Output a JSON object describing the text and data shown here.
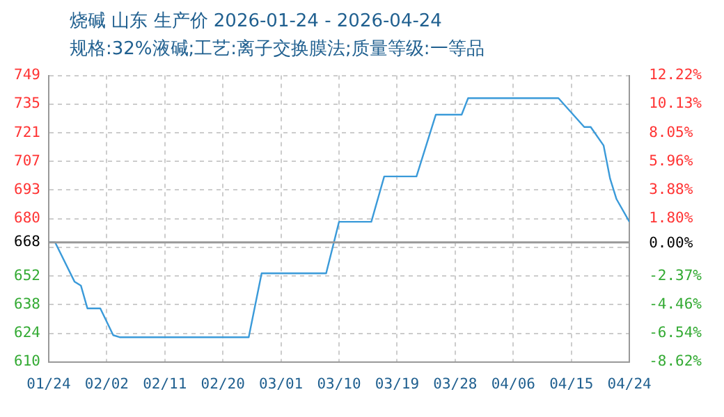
{
  "chart_data": {
    "type": "line",
    "title": "烧碱 山东 生产价 2026-01-24 - 2026-04-24",
    "subtitle": "规格:32%液碱;工艺:离子交换膜法;质量等级:一等品",
    "x": [
      "2026-01-24",
      "2026-01-25",
      "2026-01-28",
      "2026-01-29",
      "2026-01-30",
      "2026-02-01",
      "2026-02-03",
      "2026-02-04",
      "2026-02-24",
      "2026-02-26",
      "2026-03-08",
      "2026-03-10",
      "2026-03-15",
      "2026-03-17",
      "2026-03-22",
      "2026-03-25",
      "2026-03-29",
      "2026-03-30",
      "2026-04-13",
      "2026-04-17",
      "2026-04-18",
      "2026-04-20",
      "2026-04-21",
      "2026-04-22",
      "2026-04-24"
    ],
    "series": [
      {
        "color": "#3a9ad9",
        "values": [
          668,
          668,
          649,
          647,
          636,
          636,
          623,
          622,
          622,
          653,
          653,
          678,
          678,
          700,
          700,
          730,
          730,
          738,
          738,
          724,
          724,
          715,
          699,
          689,
          678
        ]
      }
    ],
    "xlim": [
      "2026-01-24",
      "2026-04-24"
    ],
    "xticks": [
      {
        "value": "2026-01-24",
        "label": "01/24"
      },
      {
        "value": "2026-02-02",
        "label": "02/02"
      },
      {
        "value": "2026-02-11",
        "label": "02/11"
      },
      {
        "value": "2026-02-20",
        "label": "02/20"
      },
      {
        "value": "2026-03-01",
        "label": "03/01"
      },
      {
        "value": "2026-03-10",
        "label": "03/10"
      },
      {
        "value": "2026-03-19",
        "label": "03/19"
      },
      {
        "value": "2026-03-28",
        "label": "03/28"
      },
      {
        "value": "2026-04-06",
        "label": "04/06"
      },
      {
        "value": "2026-04-15",
        "label": "04/15"
      },
      {
        "value": "2026-04-24",
        "label": "04/24"
      }
    ],
    "ylim": [
      610,
      749
    ],
    "yticks": [
      610,
      {
        "value": 623.9,
        "label": "624"
      },
      {
        "value": 637.8,
        "label": "638"
      },
      {
        "value": 651.7,
        "label": "652"
      },
      {
        "value": 665.6,
        "label": null
      },
      668,
      {
        "value": 679.5,
        "label": "680"
      },
      {
        "value": 693.4,
        "label": "693"
      },
      {
        "value": 707.3,
        "label": "707"
      },
      {
        "value": 721.2,
        "label": "721"
      },
      {
        "value": 735.1,
        "label": "735"
      },
      749
    ],
    "y2lim": [
      -8.62,
      12.22
    ],
    "y2ticks": [
      {
        "value": -8.62,
        "label": "-8.62%"
      },
      {
        "value": -6.54,
        "label": "-6.54%"
      },
      {
        "value": -4.46,
        "label": "-4.46%"
      },
      {
        "value": -2.37,
        "label": "-2.37%"
      },
      {
        "value": 0,
        "label": "0.00%"
      },
      {
        "value": 1.8,
        "label": "1.80%"
      },
      {
        "value": 3.88,
        "label": "3.88%"
      },
      {
        "value": 5.96,
        "label": "5.96%"
      },
      {
        "value": 8.05,
        "label": "8.05%"
      },
      {
        "value": 10.13,
        "label": "10.13%"
      },
      {
        "value": 12.22,
        "label": "12.22%"
      }
    ],
    "ref_lines": [
      {
        "axis": "y",
        "value": 668,
        "color": "#999999"
      }
    ],
    "grid": true,
    "line_style": "solid"
  }
}
